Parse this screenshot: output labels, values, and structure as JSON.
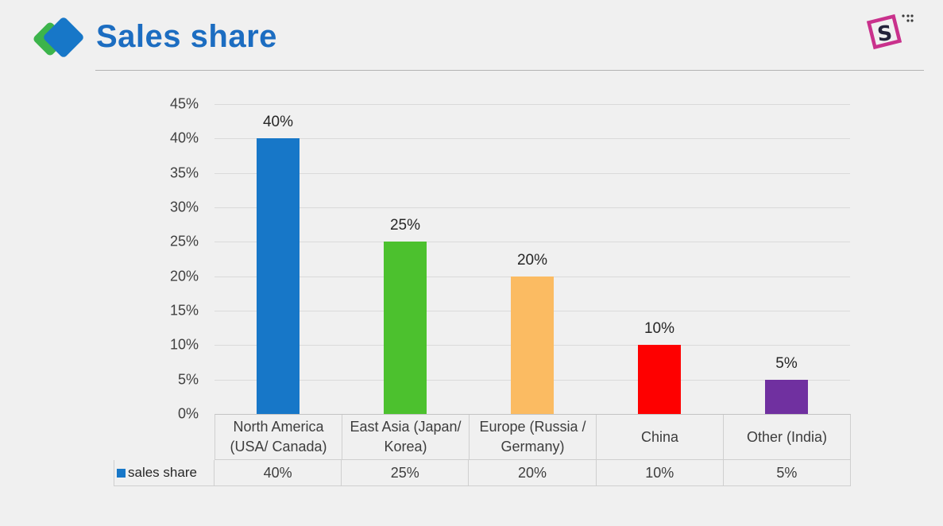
{
  "header": {
    "title": "Sales share",
    "title_color": "#1C6DC1"
  },
  "icons": {
    "slide_logo": "two-overlapping-diamonds (green back, blue front)",
    "corner_logo": "magenta-diamond-company-mark"
  },
  "chart_data": {
    "type": "bar",
    "title": "Sales share",
    "xlabel": "",
    "ylabel": "",
    "categories": [
      "North America (USA/ Canada)",
      "East Asia (Japan/ Korea)",
      "Europe (Russia / Germany)",
      "China",
      "Other (India)"
    ],
    "series": [
      {
        "name": "sales share",
        "values": [
          40,
          25,
          20,
          10,
          5
        ]
      }
    ],
    "value_labels": [
      "40%",
      "25%",
      "20%",
      "10%",
      "5%"
    ],
    "table_values": [
      "40%",
      "25%",
      "20%",
      "10%",
      "5%"
    ],
    "bar_colors": [
      "#1777C8",
      "#4CC12E",
      "#FBBB62",
      "#FE0000",
      "#7030A0"
    ],
    "ylim": [
      0,
      45
    ],
    "ytick_step": 5,
    "ytick_suffix": "%",
    "yticks": [
      "0%",
      "5%",
      "10%",
      "15%",
      "20%",
      "25%",
      "30%",
      "35%",
      "40%",
      "45%"
    ],
    "grid": true,
    "legend_position": "bottom-left-of-table"
  }
}
